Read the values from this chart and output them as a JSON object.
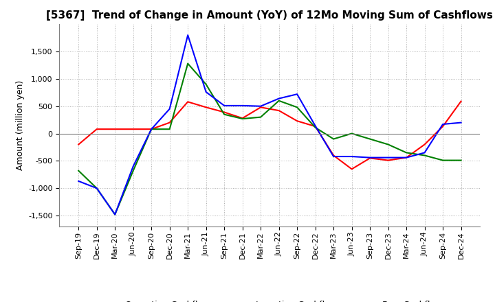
{
  "title": "[5367]  Trend of Change in Amount (YoY) of 12Mo Moving Sum of Cashflows",
  "ylabel": "Amount (million yen)",
  "ylim": [
    -1700,
    2000
  ],
  "yticks": [
    -1500,
    -1000,
    -500,
    0,
    500,
    1000,
    1500
  ],
  "x_labels": [
    "Sep-19",
    "Dec-19",
    "Mar-20",
    "Jun-20",
    "Sep-20",
    "Dec-20",
    "Mar-21",
    "Jun-21",
    "Sep-21",
    "Dec-21",
    "Mar-22",
    "Jun-22",
    "Sep-22",
    "Dec-22",
    "Mar-23",
    "Jun-23",
    "Sep-23",
    "Dec-23",
    "Mar-24",
    "Jun-24",
    "Sep-24",
    "Dec-24"
  ],
  "operating": [
    -200,
    80,
    80,
    80,
    80,
    200,
    580,
    480,
    390,
    280,
    480,
    420,
    230,
    130,
    -400,
    -650,
    -450,
    -490,
    -440,
    -200,
    130,
    590
  ],
  "investing": [
    -680,
    -1000,
    -1480,
    -680,
    80,
    80,
    1280,
    900,
    350,
    270,
    300,
    600,
    480,
    110,
    -100,
    0,
    -100,
    -200,
    -350,
    -400,
    -490,
    -490
  ],
  "free": [
    -870,
    -1000,
    -1480,
    -600,
    80,
    450,
    1800,
    760,
    510,
    510,
    500,
    640,
    720,
    140,
    -420,
    -420,
    -440,
    -440,
    -440,
    -350,
    170,
    200
  ],
  "operating_color": "#ff0000",
  "investing_color": "#008000",
  "free_color": "#0000ff",
  "background_color": "#ffffff",
  "grid_color": "#b0b0b0",
  "grid_style": "dotted",
  "title_fontsize": 11
}
